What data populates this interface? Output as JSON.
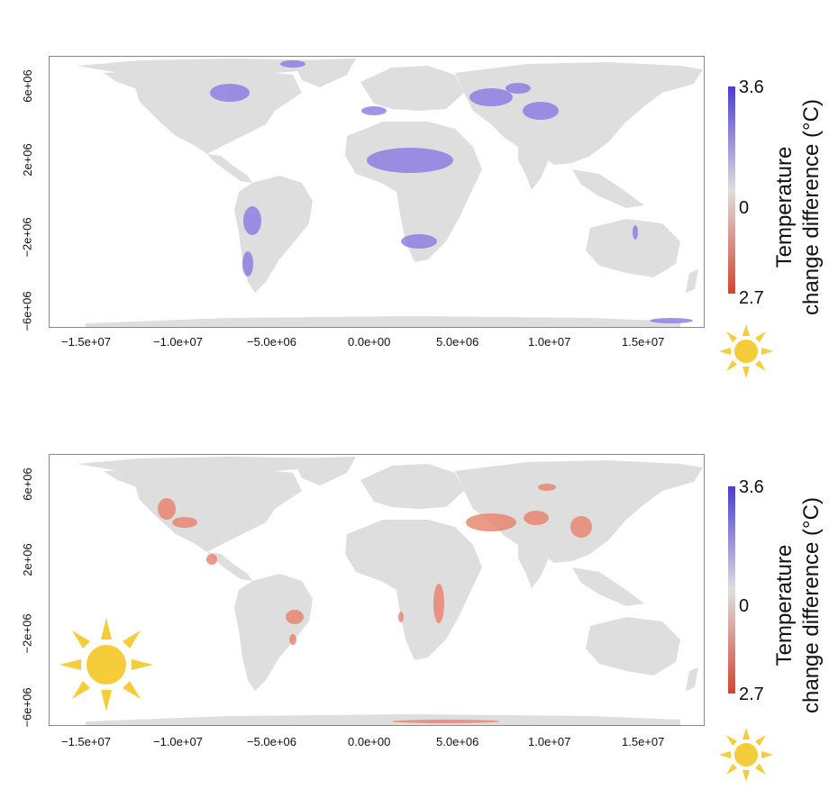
{
  "panels": [
    {
      "id": "night",
      "icon_large": "moon-icon",
      "yticks": [
        "6e+06",
        "2e+06",
        "−2e+06",
        "−6e+06"
      ],
      "xticks": [
        "−1.5e+07",
        "−1.0e+07",
        "−5.0e+06",
        "0.0e+00",
        "5.0e+06",
        "1.0e+07",
        "1.5e+07"
      ],
      "legend": {
        "max_label": "3.6",
        "mid_label": "0",
        "min_label": "2.7",
        "title_line1": "Temperature",
        "title_line2": "change difference (°C)",
        "top_color": "#4b3bd6",
        "bottom_color": "#d5432f"
      }
    },
    {
      "id": "day",
      "icon_large": "sun-icon",
      "yticks": [
        "6e+06",
        "2e+06",
        "−2e+06",
        "−6e+06"
      ],
      "xticks": [
        "−1.5e+07",
        "−1.0e+07",
        "−5.0e+06",
        "0.0e+00",
        "5.0e+06",
        "1.0e+07",
        "1.5e+07"
      ],
      "legend": {
        "max_label": "3.6",
        "mid_label": "0",
        "min_label": "2.7",
        "title_line1": "Temperature",
        "title_line2": "change difference (°C)",
        "top_color": "#4b3bd6",
        "bottom_color": "#d5432f"
      }
    }
  ],
  "colors": {
    "land": "#dedede",
    "warm": "#e8826a",
    "cool": "#8a78e2",
    "sun": "#f5cc3a",
    "moon": "#000000"
  }
}
